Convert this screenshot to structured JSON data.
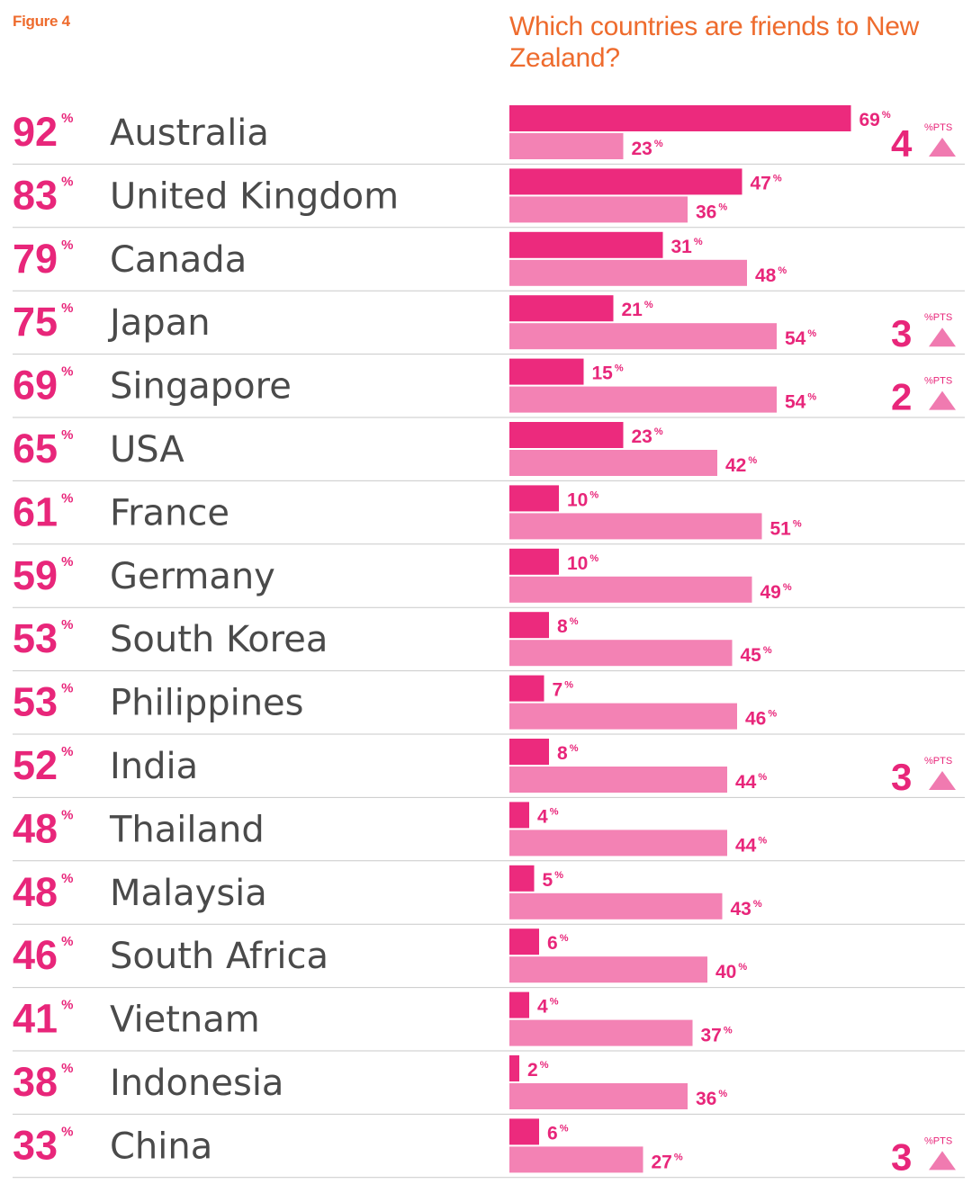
{
  "figure_label": "Figure 4",
  "chart_data": {
    "type": "bar",
    "title": "Which countries are friends to New Zealand?",
    "unit_symbol": "%",
    "change_unit": "%PTS",
    "colors": {
      "series_dark": "#ec2a7d",
      "series_light": "#f382b4",
      "text": "#e8267a",
      "title": "#ee6b2d",
      "country": "#4a4a4a",
      "divider": "#c9c9c9",
      "triangle": "#f07ab0"
    },
    "categories": [
      "Australia",
      "United Kingdom",
      "Canada",
      "Japan",
      "Singapore",
      "USA",
      "France",
      "Germany",
      "South Korea",
      "Philippines",
      "India",
      "Thailand",
      "Malaysia",
      "South Africa",
      "Vietnam",
      "Indonesia",
      "China"
    ],
    "totals": [
      92,
      83,
      79,
      75,
      69,
      65,
      61,
      59,
      53,
      53,
      52,
      48,
      48,
      46,
      41,
      38,
      33
    ],
    "series": [
      {
        "values": [
          69,
          47,
          31,
          21,
          15,
          23,
          10,
          10,
          8,
          7,
          8,
          4,
          5,
          6,
          4,
          2,
          6
        ]
      },
      {
        "values": [
          23,
          36,
          48,
          54,
          54,
          42,
          51,
          49,
          45,
          46,
          44,
          44,
          43,
          40,
          37,
          36,
          27
        ]
      }
    ],
    "changes": [
      {
        "category": "Australia",
        "value": 4,
        "direction": "up"
      },
      {
        "category": "Japan",
        "value": 3,
        "direction": "up"
      },
      {
        "category": "Singapore",
        "value": 2,
        "direction": "up"
      },
      {
        "category": "India",
        "value": 3,
        "direction": "up"
      },
      {
        "category": "China",
        "value": 3,
        "direction": "up"
      }
    ]
  }
}
